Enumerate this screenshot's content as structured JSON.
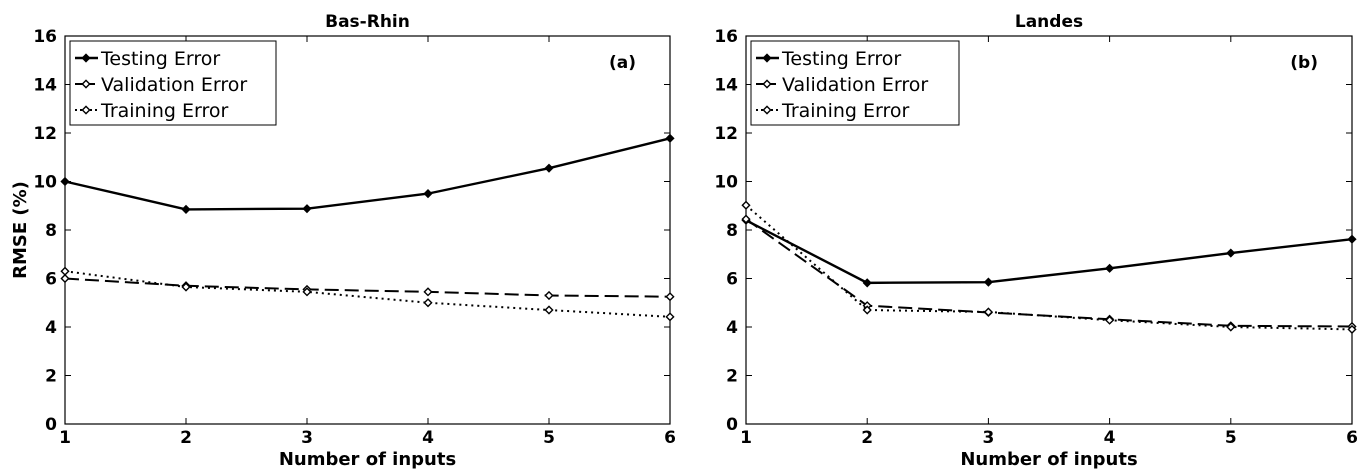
{
  "chart_data": [
    {
      "type": "line",
      "title": "Bas-Rhin",
      "panel_label": "(a)",
      "xlabel": "Number of inputs",
      "ylabel": "RMSE (%)",
      "x": [
        1,
        2,
        3,
        4,
        5,
        6
      ],
      "xlim": [
        1,
        6
      ],
      "ylim": [
        0,
        16
      ],
      "xticks": [
        "1",
        "2",
        "3",
        "4",
        "5",
        "6"
      ],
      "yticks": [
        "0",
        "2",
        "4",
        "6",
        "8",
        "10",
        "12",
        "14",
        "16"
      ],
      "grid": false,
      "legend_position": "top-left",
      "series": [
        {
          "name": "Testing Error",
          "style": "solid",
          "values": [
            10.0,
            8.85,
            8.88,
            9.5,
            10.55,
            11.78
          ]
        },
        {
          "name": "Validation Error",
          "style": "dashed",
          "values": [
            6.0,
            5.7,
            5.55,
            5.45,
            5.3,
            5.25
          ]
        },
        {
          "name": "Training Error",
          "style": "dotted",
          "values": [
            6.3,
            5.65,
            5.45,
            5.0,
            4.7,
            4.42
          ]
        }
      ]
    },
    {
      "type": "line",
      "title": "Landes",
      "panel_label": "(b)",
      "xlabel": "Number of inputs",
      "ylabel": "",
      "x": [
        1,
        2,
        3,
        4,
        5,
        6
      ],
      "xlim": [
        1,
        6
      ],
      "ylim": [
        0,
        16
      ],
      "xticks": [
        "1",
        "2",
        "3",
        "4",
        "5",
        "6"
      ],
      "yticks": [
        "0",
        "2",
        "4",
        "6",
        "8",
        "10",
        "12",
        "14",
        "16"
      ],
      "grid": false,
      "legend_position": "top-left",
      "series": [
        {
          "name": "Testing Error",
          "style": "solid",
          "values": [
            8.4,
            5.82,
            5.85,
            6.42,
            7.05,
            7.62
          ]
        },
        {
          "name": "Validation Error",
          "style": "dashed",
          "values": [
            8.45,
            4.88,
            4.6,
            4.32,
            4.05,
            4.02
          ]
        },
        {
          "name": "Training Error",
          "style": "dotted",
          "values": [
            9.02,
            4.7,
            4.62,
            4.28,
            4.0,
            3.9
          ]
        }
      ]
    }
  ],
  "colors": {
    "line": "#000000",
    "background": "#ffffff",
    "legend_border": "#000000"
  }
}
